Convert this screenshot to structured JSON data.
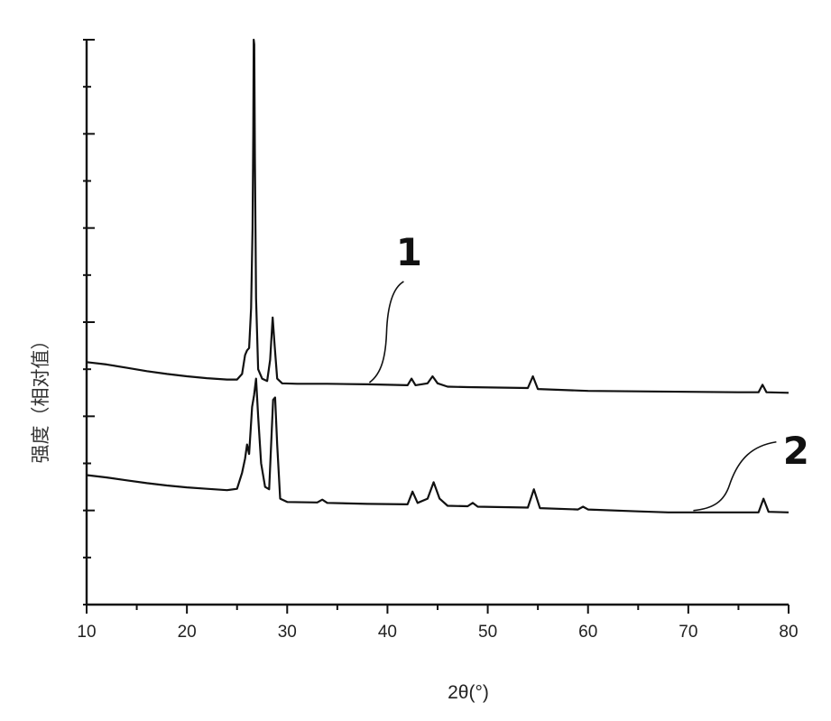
{
  "chart_data": {
    "type": "line",
    "title": "",
    "xlabel": "2θ(°)",
    "ylabel": "强度（相对值）",
    "xlim": [
      10,
      80
    ],
    "ylim": [
      0,
      120
    ],
    "x_ticks": [
      10,
      20,
      30,
      40,
      50,
      60,
      70,
      80
    ],
    "y_tick_count": 13,
    "y_tick_labels_shown": false,
    "grid": false,
    "legend": "none",
    "annotations": [
      {
        "text": "1",
        "series_index": 0,
        "points_to_x": 38.2
      },
      {
        "text": "2",
        "series_index": 1,
        "points_to_x": 70.5
      }
    ],
    "series": [
      {
        "color": "#111111",
        "points": [
          [
            10,
            51.5
          ],
          [
            12,
            51.0
          ],
          [
            14,
            50.3
          ],
          [
            16,
            49.6
          ],
          [
            18,
            49.0
          ],
          [
            20,
            48.5
          ],
          [
            22,
            48.1
          ],
          [
            24,
            47.8
          ],
          [
            25.0,
            47.8
          ],
          [
            25.5,
            49.0
          ],
          [
            25.8,
            53.0
          ],
          [
            26.0,
            54.0
          ],
          [
            26.2,
            54.5
          ],
          [
            26.4,
            63.0
          ],
          [
            26.55,
            80.0
          ],
          [
            26.62,
            100.0
          ],
          [
            26.66,
            120.0
          ],
          [
            26.72,
            119.0
          ],
          [
            26.78,
            95.0
          ],
          [
            26.9,
            65.0
          ],
          [
            27.1,
            50.0
          ],
          [
            27.5,
            48.0
          ],
          [
            28.0,
            47.5
          ],
          [
            28.3,
            52.0
          ],
          [
            28.55,
            61.0
          ],
          [
            28.75,
            55.0
          ],
          [
            29.0,
            48.0
          ],
          [
            29.5,
            47.0
          ],
          [
            31,
            46.9
          ],
          [
            34,
            46.9
          ],
          [
            38,
            46.8
          ],
          [
            42.0,
            46.6
          ],
          [
            42.4,
            48.0
          ],
          [
            42.8,
            46.6
          ],
          [
            44.0,
            47.0
          ],
          [
            44.5,
            48.5
          ],
          [
            45.0,
            47.0
          ],
          [
            46,
            46.3
          ],
          [
            48,
            46.2
          ],
          [
            54.0,
            46.0
          ],
          [
            54.5,
            48.5
          ],
          [
            55.0,
            45.8
          ],
          [
            60,
            45.4
          ],
          [
            65,
            45.3
          ],
          [
            70,
            45.2
          ],
          [
            75,
            45.1
          ],
          [
            77.0,
            45.1
          ],
          [
            77.4,
            46.7
          ],
          [
            77.8,
            45.1
          ],
          [
            80,
            45.0
          ]
        ]
      },
      {
        "color": "#111111",
        "points": [
          [
            10,
            27.5
          ],
          [
            12,
            27.0
          ],
          [
            14,
            26.4
          ],
          [
            16,
            25.8
          ],
          [
            18,
            25.3
          ],
          [
            20,
            24.9
          ],
          [
            22,
            24.6
          ],
          [
            24,
            24.3
          ],
          [
            25.0,
            24.6
          ],
          [
            25.5,
            28.0
          ],
          [
            25.8,
            31.0
          ],
          [
            26.0,
            34.0
          ],
          [
            26.2,
            32.0
          ],
          [
            26.5,
            42.0
          ],
          [
            26.7,
            44.5
          ],
          [
            26.9,
            48.0
          ],
          [
            27.1,
            40.0
          ],
          [
            27.4,
            30.0
          ],
          [
            27.8,
            25.0
          ],
          [
            28.2,
            24.5
          ],
          [
            28.4,
            34.0
          ],
          [
            28.6,
            43.5
          ],
          [
            28.8,
            44.0
          ],
          [
            29.0,
            34.0
          ],
          [
            29.3,
            22.5
          ],
          [
            30,
            21.8
          ],
          [
            33.0,
            21.7
          ],
          [
            33.5,
            22.3
          ],
          [
            34.0,
            21.6
          ],
          [
            38,
            21.4
          ],
          [
            42.0,
            21.3
          ],
          [
            42.5,
            24.0
          ],
          [
            43.0,
            21.6
          ],
          [
            44.0,
            22.5
          ],
          [
            44.6,
            26.0
          ],
          [
            45.2,
            22.5
          ],
          [
            46,
            21.0
          ],
          [
            48.0,
            20.9
          ],
          [
            48.5,
            21.6
          ],
          [
            49.0,
            20.8
          ],
          [
            54.0,
            20.6
          ],
          [
            54.6,
            24.5
          ],
          [
            55.2,
            20.5
          ],
          [
            59.0,
            20.2
          ],
          [
            59.5,
            20.8
          ],
          [
            60.0,
            20.2
          ],
          [
            65,
            19.8
          ],
          [
            68,
            19.6
          ],
          [
            72,
            19.6
          ],
          [
            77.0,
            19.6
          ],
          [
            77.5,
            22.5
          ],
          [
            78.0,
            19.7
          ],
          [
            80,
            19.6
          ]
        ]
      }
    ]
  }
}
